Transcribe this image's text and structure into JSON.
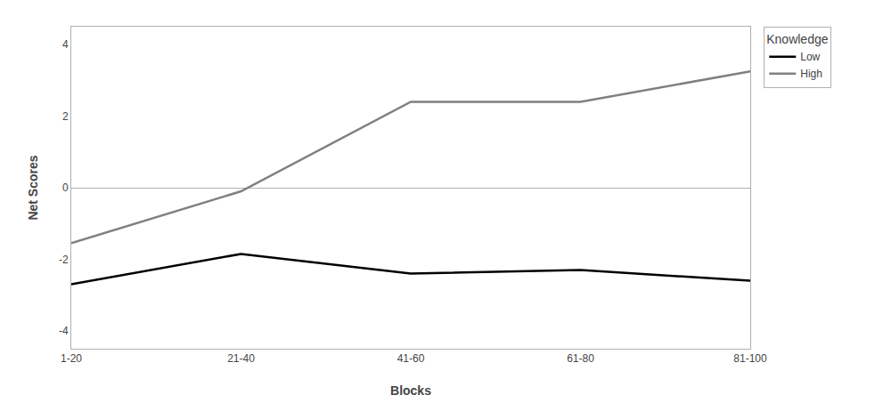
{
  "chart_data": {
    "type": "line",
    "categories": [
      "1-20",
      "21-40",
      "41-60",
      "61-80",
      "81-100"
    ],
    "series": [
      {
        "name": "Low",
        "color": "#000000",
        "values": [
          -2.7,
          -1.85,
          -2.4,
          -2.3,
          -2.6
        ]
      },
      {
        "name": "High",
        "color": "#808080",
        "values": [
          -1.55,
          -0.1,
          2.4,
          2.4,
          3.25
        ]
      }
    ],
    "legend_title": "Knowledge",
    "xlabel": "Blocks",
    "ylabel": "Net Scores",
    "ylim": [
      -4.5,
      4.5
    ],
    "yticks": [
      -4,
      -2,
      0,
      2,
      4
    ],
    "grid": false,
    "legend": "upper right"
  }
}
